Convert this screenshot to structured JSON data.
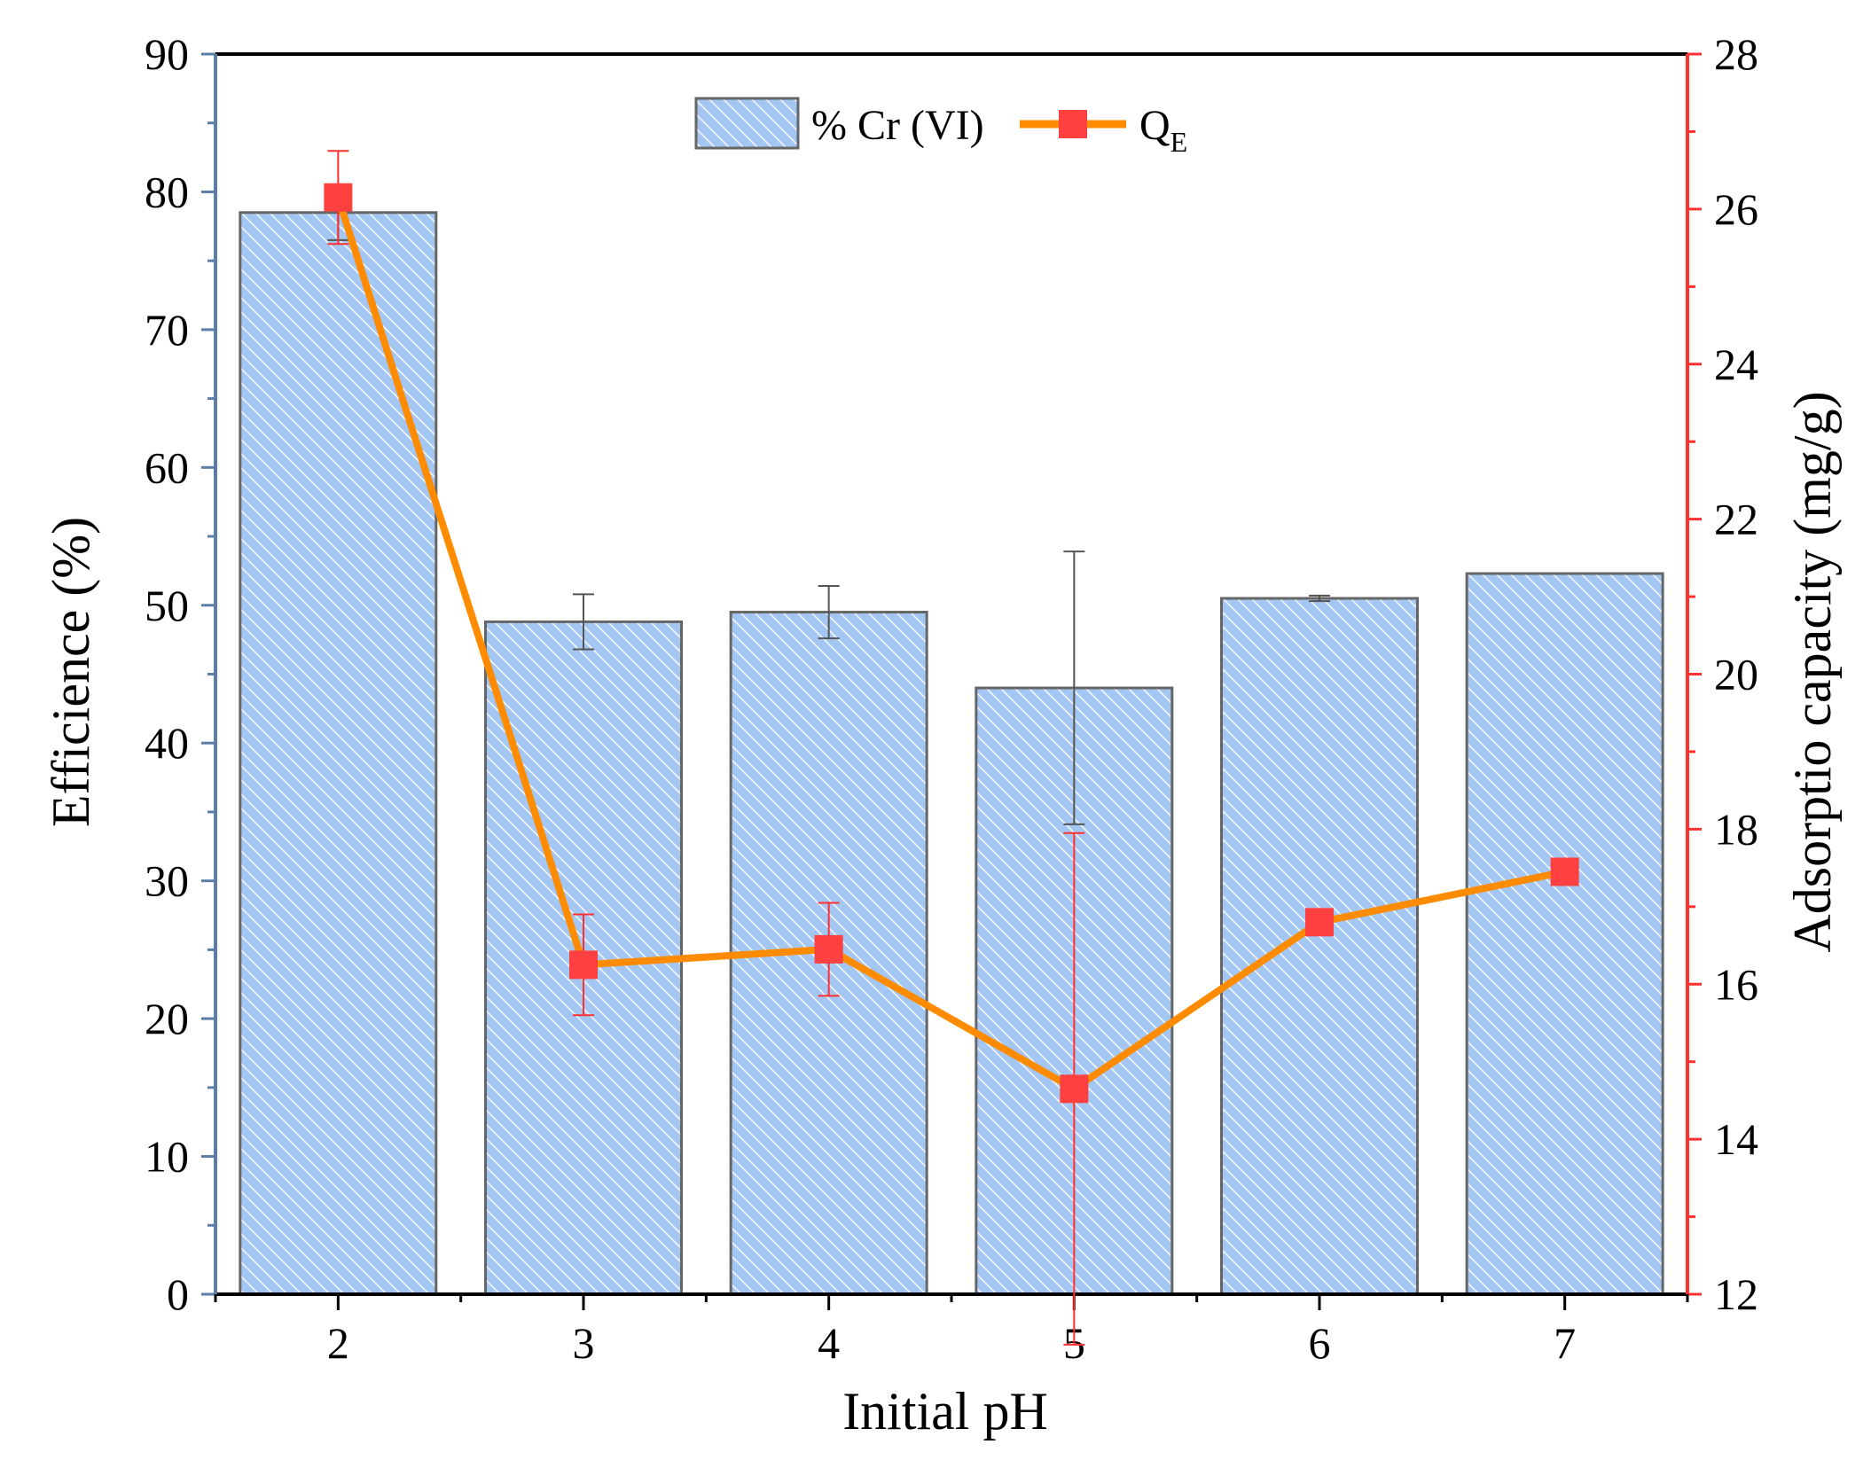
{
  "chart_data": {
    "type": "bar+line",
    "x": [
      2,
      3,
      4,
      5,
      6,
      7
    ],
    "xlabel": "Initial pH",
    "bar_series": {
      "name": "% Cr (VI)",
      "axis": "left",
      "values": [
        78.5,
        48.8,
        49.5,
        44.0,
        50.5,
        52.3
      ],
      "errors": [
        2.0,
        2.0,
        1.9,
        9.9,
        0.2,
        0.0
      ],
      "color": "#a4c6f2",
      "edge_color": "#666666"
    },
    "line_series": {
      "name": "Q",
      "name_subscript": "E",
      "axis": "right",
      "values": [
        26.15,
        16.25,
        16.45,
        14.65,
        16.8,
        17.45
      ],
      "errors": [
        0.6,
        0.65,
        0.6,
        3.3,
        0.0,
        0.0
      ],
      "line_color": "#ff8c00",
      "marker_color": "#ff4040"
    },
    "left_axis": {
      "label": "Efficience (%)",
      "ylim": [
        0,
        90
      ],
      "ticks": [
        0,
        10,
        20,
        30,
        40,
        50,
        60,
        70,
        80,
        90
      ],
      "color": "#5b7ea6"
    },
    "right_axis": {
      "label": "Adsorptio capacity (mg/g)",
      "ylim": [
        12,
        28
      ],
      "ticks": [
        12,
        14,
        16,
        18,
        20,
        22,
        24,
        26,
        28
      ],
      "color": "#ff3030"
    },
    "legend_position": "top-center"
  }
}
